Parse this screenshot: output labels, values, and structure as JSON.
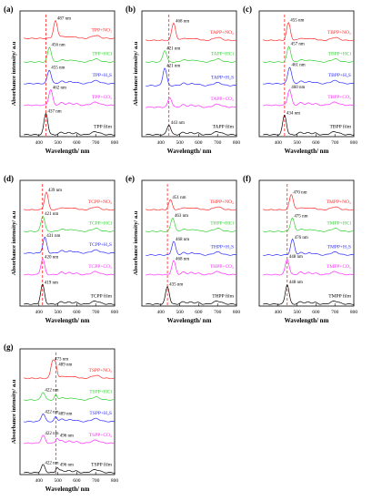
{
  "chart_data": [
    {
      "id": "a",
      "type": "line",
      "panel_label": "(a)",
      "film_label": "TPP film",
      "xlabel": "Wavelength/ nm",
      "ylabel": "Absorbance intensity/ a.u",
      "xlim": [
        300,
        800
      ],
      "xticks": [
        400,
        500,
        600,
        700,
        800
      ],
      "dashed_line_x": 437,
      "series": [
        {
          "name": "TPP+NO₂",
          "color": "#ff2a2a",
          "peak_label": "487 nm",
          "peak_x": 487,
          "offset": 5.0,
          "peak_h": 0.9
        },
        {
          "name": "TPP+HCl",
          "color": "#35d135",
          "peak_label": "456 nm",
          "peak_x": 456,
          "offset": 3.8,
          "peak_h": 0.75
        },
        {
          "name": "TPP+H₂S",
          "color": "#2b2bff",
          "peak_label": "455 nm",
          "peak_x": 455,
          "offset": 2.7,
          "peak_h": 0.7
        },
        {
          "name": "TPP+CO₂",
          "color": "#ff2aff",
          "peak_label": "462 nm",
          "peak_x": 462,
          "offset": 1.6,
          "peak_h": 0.8
        },
        {
          "name": "TPP film",
          "color": "#000000",
          "peak_label": "437 nm",
          "peak_x": 437,
          "offset": 0.1,
          "peak_h": 1.1
        }
      ]
    },
    {
      "id": "b",
      "type": "line",
      "panel_label": "(b)",
      "film_label": "TAPP film",
      "xlabel": "Wavelength/ nm",
      "ylabel": "Absorbance intensity/ a.u",
      "xlim": [
        300,
        800
      ],
      "xticks": [
        400,
        500,
        600,
        700,
        800
      ],
      "dashed_line_x": 443,
      "series": [
        {
          "name": "TAPP+NO₂",
          "color": "#ff2a2a",
          "peak_label": "468 nm",
          "peak_x": 468,
          "offset": 4.9,
          "peak_h": 0.9
        },
        {
          "name": "TAPP+HCl",
          "color": "#35d135",
          "peak_label": "421 nm",
          "peak_x": 421,
          "offset": 3.8,
          "peak_h": 0.6
        },
        {
          "name": "TAPP+H₂S",
          "color": "#2b2bff",
          "peak_label": "421 nm",
          "peak_x": 421,
          "offset": 2.6,
          "peak_h": 0.9
        },
        {
          "name": "TAPP+CO₂",
          "color": "#ff2aff",
          "peak_label": "",
          "peak_x": 448,
          "offset": 1.5,
          "peak_h": 0.5
        },
        {
          "name": "TAPP film",
          "color": "#000000",
          "peak_label": "443 nm",
          "peak_x": 443,
          "offset": 0.1,
          "peak_h": 0.5
        }
      ]
    },
    {
      "id": "c",
      "type": "line",
      "panel_label": "(c)",
      "film_label": "TBPP film",
      "xlabel": "Wavelength/ nm",
      "ylabel": "",
      "xlim": [
        300,
        800
      ],
      "xticks": [
        400,
        500,
        600,
        700,
        800
      ],
      "dashed_line_x": 434,
      "series": [
        {
          "name": "TBPP+NO₂",
          "color": "#ff2a2a",
          "peak_label": "455 nm",
          "peak_x": 455,
          "offset": 4.9,
          "peak_h": 0.9
        },
        {
          "name": "TBPP+HCl",
          "color": "#35d135",
          "peak_label": "457 nm",
          "peak_x": 457,
          "offset": 3.8,
          "peak_h": 0.8
        },
        {
          "name": "TBPP+H₂S",
          "color": "#2b2bff",
          "peak_label": "461 nm",
          "peak_x": 461,
          "offset": 2.7,
          "peak_h": 0.85
        },
        {
          "name": "TBPP+CO₂",
          "color": "#ff2aff",
          "peak_label": "460 nm",
          "peak_x": 460,
          "offset": 1.6,
          "peak_h": 0.8
        },
        {
          "name": "TBPP film",
          "color": "#000000",
          "peak_label": "434 nm",
          "peak_x": 434,
          "offset": 0.1,
          "peak_h": 1.0
        }
      ]
    },
    {
      "id": "d",
      "type": "line",
      "panel_label": "(d)",
      "film_label": "TCPP film",
      "xlabel": "Wavelength/ nm",
      "ylabel": "Absorbance intensity/ a.u",
      "xlim": [
        300,
        800
      ],
      "xticks": [
        400,
        500,
        600,
        700,
        800
      ],
      "dashed_line_x": 419,
      "series": [
        {
          "name": "TCPP+NO₂",
          "color": "#ff2a2a",
          "peak_label": "439 nm",
          "peak_x": 439,
          "offset": 4.9,
          "peak_h": 0.9
        },
        {
          "name": "TCPP+HCl",
          "color": "#35d135",
          "peak_label": "421 nm",
          "peak_x": 421,
          "offset": 3.8,
          "peak_h": 0.8
        },
        {
          "name": "TCPP+H₂S",
          "color": "#2b2bff",
          "peak_label": "431 nm",
          "peak_x": 431,
          "offset": 2.7,
          "peak_h": 0.8
        },
        {
          "name": "TCPP+CO₂",
          "color": "#ff2aff",
          "peak_label": "420 nm",
          "peak_x": 420,
          "offset": 1.6,
          "peak_h": 0.8
        },
        {
          "name": "TCPP film",
          "color": "#000000",
          "peak_label": "419 nm",
          "peak_x": 419,
          "offset": 0.1,
          "peak_h": 1.0
        }
      ]
    },
    {
      "id": "e",
      "type": "line",
      "panel_label": "(e)",
      "film_label": "THPP film",
      "xlabel": "Wavelength/ nm",
      "ylabel": "Absorbance intensity/ a.u",
      "xlim": [
        300,
        800
      ],
      "xticks": [
        400,
        500,
        600,
        700,
        800
      ],
      "dashed_line_x": 435,
      "series": [
        {
          "name": "THPP+NO₂",
          "color": "#ff2a2a",
          "peak_label": "451 nm",
          "peak_x": 451,
          "offset": 4.9,
          "peak_h": 0.5
        },
        {
          "name": "THPP+HCl",
          "color": "#35d135",
          "peak_label": "463 nm",
          "peak_x": 463,
          "offset": 3.8,
          "peak_h": 0.7
        },
        {
          "name": "THPP+H₂S",
          "color": "#2b2bff",
          "peak_label": "468 nm",
          "peak_x": 468,
          "offset": 2.6,
          "peak_h": 0.7
        },
        {
          "name": "THPP+CO₂",
          "color": "#ff2aff",
          "peak_label": "468 nm",
          "peak_x": 468,
          "offset": 1.6,
          "peak_h": 0.7
        },
        {
          "name": "THPP film",
          "color": "#000000",
          "peak_label": "435 nm",
          "peak_x": 435,
          "offset": 0.1,
          "peak_h": 0.9
        }
      ]
    },
    {
      "id": "f",
      "type": "line",
      "panel_label": "(f)",
      "film_label": "TMPP film",
      "xlabel": "Wavelength/ nm",
      "ylabel": "",
      "xlim": [
        300,
        800
      ],
      "xticks": [
        400,
        500,
        600,
        700,
        800
      ],
      "dashed_line_x": 448,
      "series": [
        {
          "name": "TMPP+NO₂",
          "color": "#ff2a2a",
          "peak_label": "470 nm",
          "peak_x": 470,
          "offset": 4.9,
          "peak_h": 0.8
        },
        {
          "name": "TMPP+HCl",
          "color": "#35d135",
          "peak_label": "475 nm",
          "peak_x": 475,
          "offset": 3.8,
          "peak_h": 0.7
        },
        {
          "name": "TMPP+H₂S",
          "color": "#2b2bff",
          "peak_label": "476 nm",
          "peak_x": 476,
          "offset": 2.6,
          "peak_h": 0.8
        },
        {
          "name": "TMPP+CO₂",
          "color": "#ff2aff",
          "peak_label": "448 nm",
          "peak_x": 448,
          "offset": 1.6,
          "peak_h": 0.8
        },
        {
          "name": "TMPP film",
          "color": "#000000",
          "peak_label": "448 nm",
          "peak_x": 448,
          "offset": 0.1,
          "peak_h": 1.0
        }
      ]
    },
    {
      "id": "g",
      "type": "line",
      "panel_label": "(g)",
      "film_label": "TSPP film",
      "xlabel": "Wavelength/ nm",
      "ylabel": "Absorbance intensity/ a.u",
      "xlim": [
        300,
        800
      ],
      "xticks": [
        400,
        500,
        600,
        700,
        800
      ],
      "dashed_line_x": 489,
      "series": [
        {
          "name": "TSPP+NO₂",
          "color": "#ff2a2a",
          "peak_label": "473 nm",
          "peak_x": 473,
          "offset": 4.9,
          "peak_h": 0.9,
          "second_label": "489 nm",
          "second_x": 489
        },
        {
          "name": "TSPP+HCl",
          "color": "#35d135",
          "peak_label": "422 nm",
          "peak_x": 422,
          "offset": 3.8,
          "peak_h": 0.4,
          "second_label": "",
          "second_x": 489
        },
        {
          "name": "TSPP+H₂S",
          "color": "#2b2bff",
          "peak_label": "422 nm",
          "peak_x": 422,
          "offset": 2.7,
          "peak_h": 0.4,
          "second_label": "489 nm",
          "second_x": 489
        },
        {
          "name": "TSPP+CO₂",
          "color": "#ff2aff",
          "peak_label": "422 nm",
          "peak_x": 422,
          "offset": 1.6,
          "peak_h": 0.4,
          "second_label": "496 nm",
          "second_x": 496
        },
        {
          "name": "TSPP film",
          "color": "#000000",
          "peak_label": "422 nm",
          "peak_x": 422,
          "offset": 0.1,
          "peak_h": 0.4,
          "second_label": "496 nm",
          "second_x": 496
        }
      ]
    }
  ]
}
